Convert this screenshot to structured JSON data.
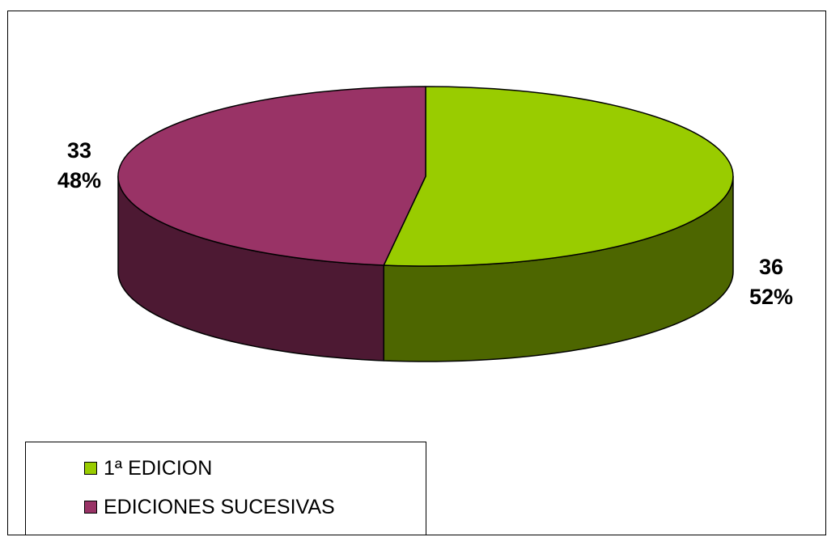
{
  "chart_data": {
    "type": "pie",
    "style": "3d",
    "title": "",
    "slices": [
      {
        "label": "1ª EDICION",
        "value": 36,
        "percent": "52%",
        "top_color": "#99cc00",
        "side_color": "#4d6600"
      },
      {
        "label": "EDICIONES SUCESIVAS",
        "value": 33,
        "percent": "48%",
        "top_color": "#993366",
        "side_color": "#4d1933"
      }
    ],
    "data_labels": [
      {
        "value": "36",
        "percent": "52%"
      },
      {
        "value": "33",
        "percent": "48%"
      }
    ],
    "legend": {
      "position": "bottom-left",
      "entries": [
        "1ª EDICION",
        "EDICIONES SUCESIVAS"
      ]
    }
  }
}
